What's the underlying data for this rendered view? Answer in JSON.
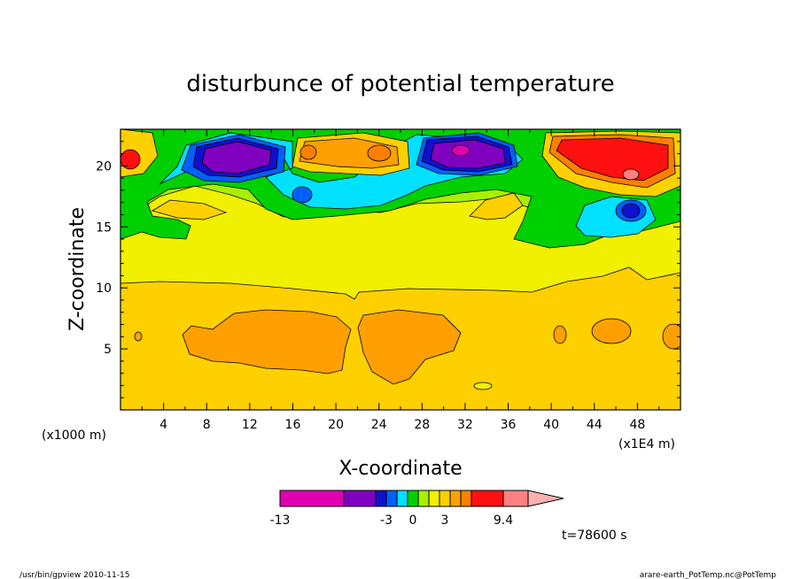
{
  "chart_data": {
    "type": "heatmap",
    "title": "disturbunce of potential temperature",
    "xlabel": "X-coordinate",
    "ylabel": "Z-coordinate",
    "x_unit_left": "(x1000 m)",
    "x_unit_right": "(x1E4 m)",
    "xlim": [
      0,
      52
    ],
    "ylim": [
      0,
      23
    ],
    "x_ticks": [
      4,
      8,
      12,
      16,
      20,
      24,
      28,
      32,
      36,
      40,
      44,
      48
    ],
    "y_ticks": [
      5,
      10,
      15,
      20
    ],
    "colorbar": {
      "colors": [
        "#e000b0",
        "#8000c0",
        "#1010d0",
        "#0060ff",
        "#00e0ff",
        "#00d000",
        "#a8f000",
        "#f0f000",
        "#ffd000",
        "#ffa000",
        "#ff8000",
        "#ff1010",
        "#ff8080",
        "#ffb0b0"
      ],
      "tick_labels": [
        "-13",
        "-3",
        "0",
        "3",
        "9.4"
      ]
    },
    "time_label": "t=78600 s"
  },
  "footer": {
    "left": "/usr/bin/gpview   2010-11-15",
    "right": "arare-earth_PotTemp.nc@PotTemp"
  }
}
